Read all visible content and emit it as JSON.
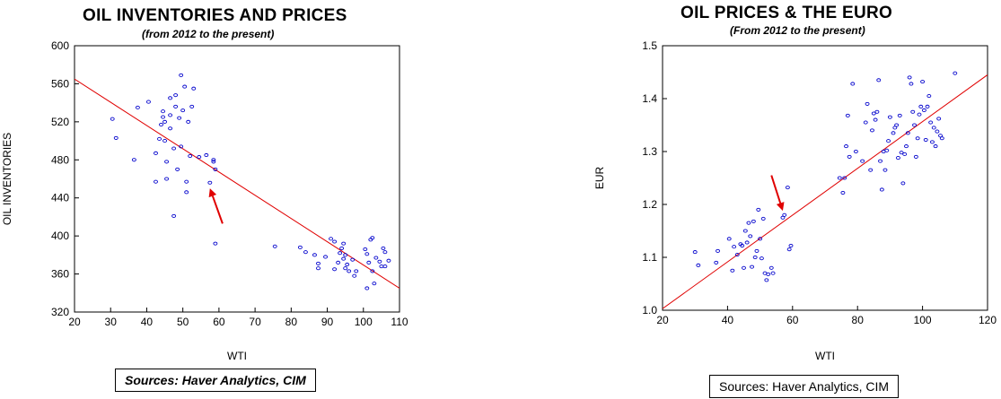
{
  "chart_data": [
    {
      "type": "scatter",
      "title": "OIL INVENTORIES AND PRICES",
      "subtitle": "(from 2012 to the present)",
      "xlabel": "WTI",
      "ylabel": "OIL INVENTORIES",
      "xlim": [
        20,
        110
      ],
      "ylim": [
        320,
        600
      ],
      "xticks": [
        20,
        30,
        40,
        50,
        60,
        70,
        80,
        90,
        100,
        110
      ],
      "yticks": [
        320,
        360,
        400,
        440,
        480,
        520,
        560,
        600
      ],
      "grid": false,
      "colors": {
        "points": "#0000cc",
        "fit": "#e00000",
        "arrow": "#e00000"
      },
      "fit_line": [
        [
          20,
          565
        ],
        [
          110,
          345
        ]
      ],
      "arrow": {
        "from": [
          61,
          413
        ],
        "to": [
          57.5,
          450
        ]
      },
      "source": "Sources:  Haver Analytics, CIM",
      "points": [
        [
          30.5,
          523
        ],
        [
          31.5,
          503
        ],
        [
          36.5,
          480
        ],
        [
          37.5,
          535
        ],
        [
          40.5,
          541
        ],
        [
          42.5,
          487
        ],
        [
          42.5,
          457
        ],
        [
          43.5,
          502
        ],
        [
          44.0,
          517
        ],
        [
          44.5,
          531
        ],
        [
          44.5,
          525
        ],
        [
          45.0,
          520
        ],
        [
          45.0,
          500
        ],
        [
          45.5,
          460
        ],
        [
          45.5,
          478
        ],
        [
          46.5,
          545
        ],
        [
          46.5,
          513
        ],
        [
          46.5,
          527
        ],
        [
          47.5,
          421
        ],
        [
          47.5,
          492
        ],
        [
          48.0,
          536
        ],
        [
          48.0,
          548
        ],
        [
          48.5,
          470
        ],
        [
          49.0,
          524
        ],
        [
          49.5,
          569
        ],
        [
          49.5,
          494
        ],
        [
          50.0,
          532
        ],
        [
          50.5,
          557
        ],
        [
          51.0,
          457
        ],
        [
          51.0,
          446
        ],
        [
          51.5,
          520
        ],
        [
          52.0,
          484
        ],
        [
          52.5,
          536
        ],
        [
          53.0,
          555
        ],
        [
          54.5,
          483
        ],
        [
          56.5,
          485
        ],
        [
          57.5,
          456
        ],
        [
          58.5,
          480
        ],
        [
          58.5,
          478
        ],
        [
          59.0,
          470
        ],
        [
          59.0,
          392
        ],
        [
          75.5,
          389
        ],
        [
          82.5,
          388
        ],
        [
          84.0,
          383
        ],
        [
          86.5,
          380
        ],
        [
          87.5,
          366
        ],
        [
          87.5,
          371
        ],
        [
          89.5,
          378
        ],
        [
          91.0,
          397
        ],
        [
          92.0,
          394
        ],
        [
          92.0,
          365
        ],
        [
          93.0,
          372
        ],
        [
          93.5,
          382
        ],
        [
          94.0,
          387
        ],
        [
          94.5,
          392
        ],
        [
          94.5,
          376
        ],
        [
          95.0,
          380
        ],
        [
          95.0,
          366
        ],
        [
          95.5,
          370
        ],
        [
          96.0,
          363
        ],
        [
          97.0,
          375
        ],
        [
          97.5,
          358
        ],
        [
          98.0,
          363
        ],
        [
          100.5,
          386
        ],
        [
          101.0,
          345
        ],
        [
          101.0,
          381
        ],
        [
          101.5,
          372
        ],
        [
          102.0,
          396
        ],
        [
          102.5,
          363
        ],
        [
          102.5,
          398
        ],
        [
          103.0,
          350
        ],
        [
          103.5,
          377
        ],
        [
          104.5,
          373
        ],
        [
          105.0,
          368
        ],
        [
          105.5,
          387
        ],
        [
          106.0,
          368
        ],
        [
          106.0,
          383
        ],
        [
          107.0,
          374
        ]
      ]
    },
    {
      "type": "scatter",
      "title": "OIL PRICES & THE EURO",
      "subtitle": "(From 2012 to the present)",
      "xlabel": "WTI",
      "ylabel": "EUR",
      "xlim": [
        20,
        120
      ],
      "ylim": [
        1.0,
        1.5
      ],
      "xticks": [
        20,
        40,
        60,
        80,
        100,
        120
      ],
      "yticks": [
        1.0,
        1.1,
        1.2,
        1.3,
        1.4,
        1.5
      ],
      "grid": false,
      "colors": {
        "points": "#0000cc",
        "fit": "#e00000",
        "arrow": "#e00000"
      },
      "fit_line": [
        [
          20,
          1.003
        ],
        [
          120,
          1.445
        ]
      ],
      "arrow": {
        "from": [
          53.5,
          1.255
        ],
        "to": [
          57,
          1.188
        ]
      },
      "source": "Sources:  Haver Analytics, CIM",
      "points": [
        [
          30.0,
          1.11
        ],
        [
          31.0,
          1.085
        ],
        [
          36.5,
          1.09
        ],
        [
          37.0,
          1.112
        ],
        [
          40.5,
          1.135
        ],
        [
          41.5,
          1.075
        ],
        [
          42.0,
          1.12
        ],
        [
          43.0,
          1.105
        ],
        [
          44.0,
          1.125
        ],
        [
          44.5,
          1.122
        ],
        [
          45.0,
          1.08
        ],
        [
          45.5,
          1.15
        ],
        [
          46.0,
          1.128
        ],
        [
          46.5,
          1.165
        ],
        [
          47.0,
          1.14
        ],
        [
          47.5,
          1.082
        ],
        [
          48.0,
          1.168
        ],
        [
          48.5,
          1.1
        ],
        [
          49.0,
          1.112
        ],
        [
          49.5,
          1.19
        ],
        [
          50.0,
          1.135
        ],
        [
          50.5,
          1.098
        ],
        [
          51.0,
          1.173
        ],
        [
          51.5,
          1.07
        ],
        [
          52.0,
          1.057
        ],
        [
          52.5,
          1.068
        ],
        [
          53.5,
          1.08
        ],
        [
          54.0,
          1.07
        ],
        [
          57.0,
          1.175
        ],
        [
          57.5,
          1.18
        ],
        [
          58.5,
          1.232
        ],
        [
          59.0,
          1.115
        ],
        [
          59.5,
          1.122
        ],
        [
          74.5,
          1.25
        ],
        [
          75.5,
          1.222
        ],
        [
          76.0,
          1.25
        ],
        [
          76.5,
          1.31
        ],
        [
          77.0,
          1.368
        ],
        [
          77.5,
          1.29
        ],
        [
          78.5,
          1.428
        ],
        [
          79.5,
          1.3
        ],
        [
          81.5,
          1.282
        ],
        [
          82.5,
          1.355
        ],
        [
          83.0,
          1.39
        ],
        [
          84.0,
          1.265
        ],
        [
          84.5,
          1.34
        ],
        [
          85.0,
          1.372
        ],
        [
          85.5,
          1.36
        ],
        [
          86.0,
          1.375
        ],
        [
          86.5,
          1.435
        ],
        [
          87.0,
          1.282
        ],
        [
          87.5,
          1.228
        ],
        [
          88.0,
          1.3
        ],
        [
          88.5,
          1.265
        ],
        [
          89.0,
          1.302
        ],
        [
          89.5,
          1.32
        ],
        [
          90.0,
          1.365
        ],
        [
          91.0,
          1.335
        ],
        [
          91.5,
          1.345
        ],
        [
          92.0,
          1.35
        ],
        [
          92.5,
          1.288
        ],
        [
          93.0,
          1.368
        ],
        [
          93.5,
          1.298
        ],
        [
          94.0,
          1.24
        ],
        [
          94.5,
          1.295
        ],
        [
          95.0,
          1.31
        ],
        [
          95.5,
          1.335
        ],
        [
          96.0,
          1.44
        ],
        [
          96.5,
          1.428
        ],
        [
          97.0,
          1.375
        ],
        [
          97.5,
          1.35
        ],
        [
          98.0,
          1.29
        ],
        [
          98.5,
          1.325
        ],
        [
          99.0,
          1.37
        ],
        [
          99.5,
          1.385
        ],
        [
          100.0,
          1.432
        ],
        [
          100.5,
          1.378
        ],
        [
          101.0,
          1.322
        ],
        [
          101.5,
          1.385
        ],
        [
          102.0,
          1.405
        ],
        [
          102.5,
          1.355
        ],
        [
          103.0,
          1.318
        ],
        [
          103.5,
          1.345
        ],
        [
          104.0,
          1.31
        ],
        [
          104.5,
          1.338
        ],
        [
          105.0,
          1.362
        ],
        [
          105.5,
          1.33
        ],
        [
          106.0,
          1.325
        ],
        [
          110.0,
          1.448
        ]
      ]
    }
  ]
}
